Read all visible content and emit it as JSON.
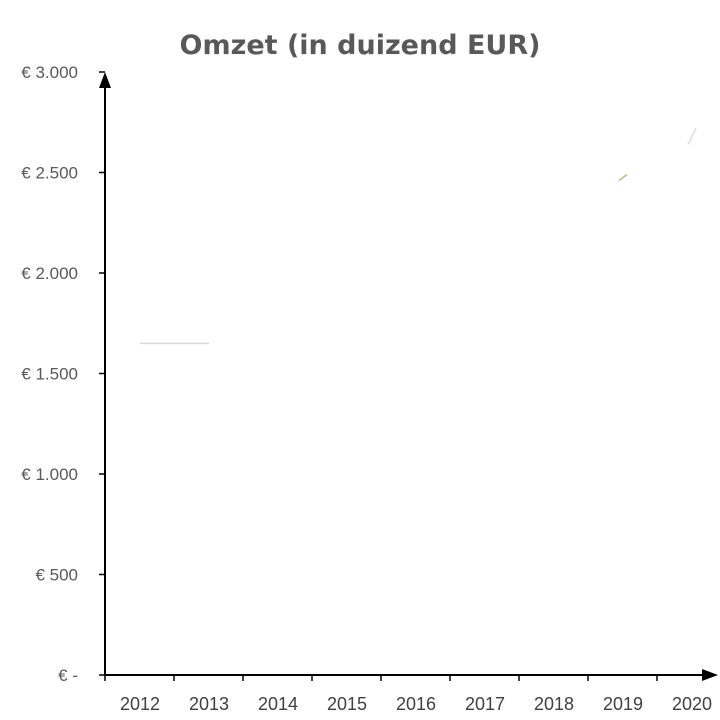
{
  "chart_data": {
    "type": "line",
    "title": "Omzet (in duizend EUR)",
    "xlabel": "",
    "ylabel": "",
    "categories": [
      "2012",
      "2013",
      "2014",
      "2015",
      "2016",
      "2017",
      "2018",
      "2019",
      "2020"
    ],
    "y_tick_values": [
      0,
      500,
      1000,
      1500,
      2000,
      2500,
      3000
    ],
    "y_tick_labels": [
      "€ -",
      "€ 500",
      "€ 1.000",
      "€ 1.500",
      "€ 2.000",
      "€ 2.500",
      "€ 3.000"
    ],
    "ylim": [
      0,
      3000
    ],
    "grid": false,
    "legend": "none",
    "visible_traces": [
      {
        "x": [
          "2012",
          "2013"
        ],
        "y": [
          1650,
          1650
        ],
        "color": "#d9d9d9"
      },
      {
        "x": [
          "2019",
          "2019"
        ],
        "y": [
          2460,
          2490
        ],
        "color": "#a9c47f"
      },
      {
        "x": [
          "2020",
          "2020"
        ],
        "y": [
          2640,
          2720
        ],
        "color": "#dddddd"
      }
    ],
    "axis_color": "#000000"
  }
}
